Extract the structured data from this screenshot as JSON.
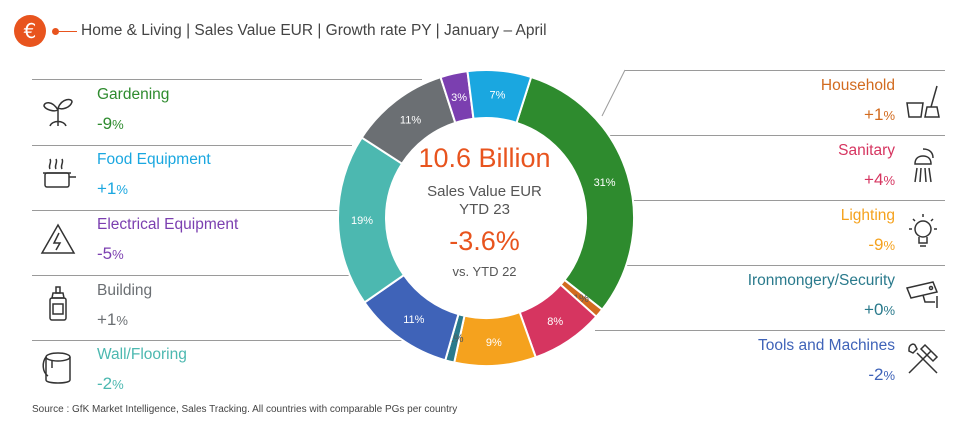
{
  "header": {
    "icon": "euro-icon",
    "title": "Home & Living | Sales Value EUR | Growth rate PY | January – April"
  },
  "center": {
    "total": "10.6 Billion",
    "label1": "Sales Value EUR",
    "label2": "YTD 23",
    "growth": "-3.6%",
    "compare": "vs. YTD 22"
  },
  "colors": {
    "accent": "#e8541e",
    "gardening": "#2e8b2e",
    "food": "#1aa7e0",
    "electrical": "#7b3fb0",
    "building": "#6b6f73",
    "wall": "#4cb8b0",
    "household": "#d26b1f",
    "sanitary": "#d63560",
    "lighting": "#f5a21e",
    "ironmongery": "#2a7a8c",
    "tools": "#3f63b8"
  },
  "left_categories": [
    {
      "name": "Gardening",
      "growth_main": "-9",
      "growth_unit": "%",
      "icon": "seedling-icon"
    },
    {
      "name": "Food Equipment",
      "growth_main": "+1",
      "growth_unit": "%",
      "icon": "cooking-pot-icon"
    },
    {
      "name": "Electrical Equipment",
      "growth_main": "-5",
      "growth_unit": "%",
      "icon": "high-voltage-icon"
    },
    {
      "name": "Building",
      "growth_main": "+1",
      "growth_unit": "%",
      "icon": "glue-bottle-icon"
    },
    {
      "name": "Wall/Flooring",
      "growth_main": "-2",
      "growth_unit": "%",
      "icon": "paint-bucket-icon"
    }
  ],
  "right_categories": [
    {
      "name": "Household",
      "growth_main": "+1",
      "growth_unit": "%",
      "icon": "broom-bucket-icon"
    },
    {
      "name": "Sanitary",
      "growth_main": "+4",
      "growth_unit": "%",
      "icon": "shower-icon"
    },
    {
      "name": "Lighting",
      "growth_main": "-9",
      "growth_unit": "%",
      "icon": "lightbulb-icon"
    },
    {
      "name": "Ironmongery/Security",
      "growth_main": "+0",
      "growth_unit": "%",
      "icon": "security-camera-icon"
    },
    {
      "name": "Tools and Machines",
      "growth_main": "-2",
      "growth_unit": "%",
      "icon": "hammer-wrench-icon"
    }
  ],
  "source": "Source : GfK Market Intelligence, Sales Tracking. All countries with comparable PGs per country",
  "chart_data": {
    "type": "pie",
    "categories": [
      "Gardening",
      "Household",
      "Sanitary",
      "Lighting",
      "Ironmongery/Security",
      "Tools and Machines",
      "Wall/Flooring",
      "Building",
      "Electrical Equipment",
      "Food Equipment"
    ],
    "values": [
      31,
      1,
      8,
      9,
      1,
      11,
      19,
      11,
      3,
      7
    ],
    "labels": [
      "31%",
      "1%",
      "8%",
      "9%",
      "1%",
      "11%",
      "19%",
      "11%",
      "3%",
      "7%"
    ],
    "colors": [
      "#2e8b2e",
      "#d26b1f",
      "#d63560",
      "#f5a21e",
      "#2a7a8c",
      "#3f63b8",
      "#4cb8b0",
      "#6b6f73",
      "#7b3fb0",
      "#1aa7e0"
    ],
    "donut": true
  }
}
